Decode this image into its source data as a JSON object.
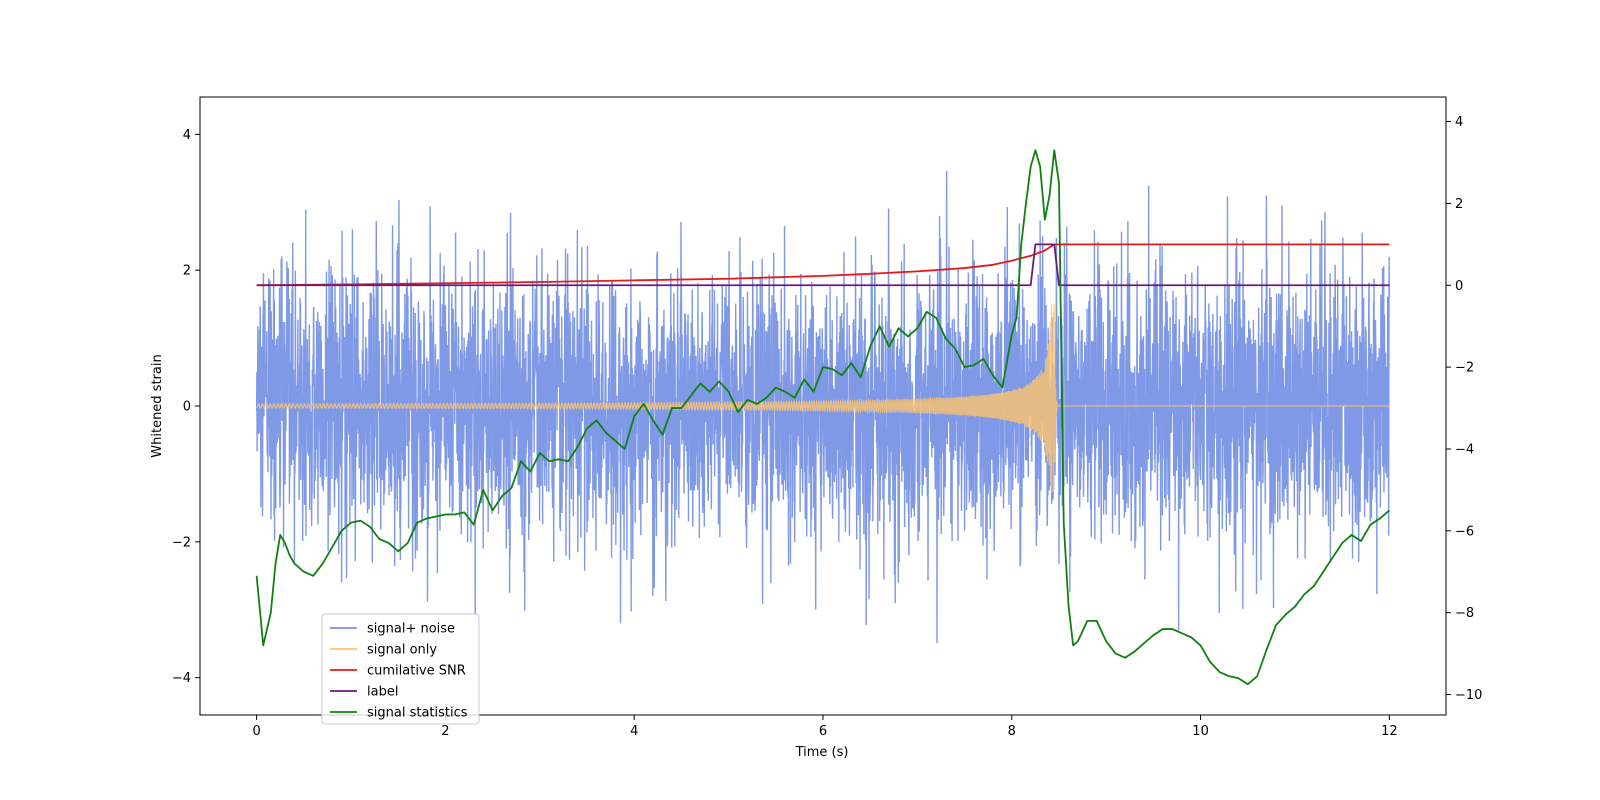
{
  "chart_data": {
    "type": "line",
    "xlabel": "Time (s)",
    "ylabel": "Whitened strain",
    "xlim": [
      -0.6,
      12.6
    ],
    "ylim_left": [
      -4.55,
      4.55
    ],
    "ylim_right": [
      -10.5,
      4.6
    ],
    "x_ticks": [
      0,
      2,
      4,
      6,
      8,
      10,
      12
    ],
    "y_ticks_left": [
      -4,
      -2,
      0,
      2,
      4
    ],
    "y_ticks_right": [
      -10,
      -8,
      -6,
      -4,
      -2,
      0,
      2,
      4
    ],
    "legend_position": "lower-left",
    "series": [
      {
        "name": "signal+ noise",
        "axis": "left",
        "color": "#7893e6",
        "description_range": {
          "x": [
            0,
            12
          ],
          "typical_band": [
            -1.6,
            1.6
          ],
          "peak_min": -4.1,
          "peak_max": 4.1
        },
        "seed": 12345
      },
      {
        "name": "signal only",
        "axis": "left",
        "color": "#ffc46e",
        "chirp": {
          "start": 0,
          "merge": 8.45,
          "end": 12,
          "amp_start": 0.03,
          "amp_peak": 1.5
        }
      },
      {
        "name": "cumilative SNR",
        "axis": "right",
        "color": "#e41a1c",
        "x": [
          0,
          1,
          2,
          3,
          4,
          5,
          6,
          6.5,
          7,
          7.5,
          7.8,
          8.0,
          8.2,
          8.35,
          8.45,
          8.5,
          12
        ],
        "values": [
          0,
          0.02,
          0.05,
          0.08,
          0.12,
          0.16,
          0.23,
          0.28,
          0.34,
          0.42,
          0.5,
          0.6,
          0.72,
          0.85,
          1.0,
          1.0,
          1.0
        ]
      },
      {
        "name": "label",
        "axis": "right",
        "color": "#6a1b7a",
        "x": [
          0,
          8.2,
          8.25,
          8.45,
          8.5,
          12
        ],
        "values": [
          0,
          0,
          1,
          1,
          0,
          0
        ]
      },
      {
        "name": "signal statistics",
        "axis": "right",
        "color": "#118011",
        "x": [
          0,
          0.07,
          0.15,
          0.2,
          0.25,
          0.3,
          0.35,
          0.4,
          0.5,
          0.6,
          0.7,
          0.8,
          0.9,
          1.0,
          1.1,
          1.2,
          1.3,
          1.4,
          1.5,
          1.6,
          1.7,
          1.8,
          1.9,
          2.0,
          2.1,
          2.2,
          2.3,
          2.4,
          2.5,
          2.6,
          2.7,
          2.8,
          2.9,
          3.0,
          3.1,
          3.2,
          3.3,
          3.4,
          3.5,
          3.6,
          3.7,
          3.8,
          3.9,
          4.0,
          4.1,
          4.2,
          4.3,
          4.4,
          4.5,
          4.6,
          4.7,
          4.8,
          4.9,
          5.0,
          5.1,
          5.2,
          5.3,
          5.4,
          5.5,
          5.6,
          5.7,
          5.8,
          5.9,
          6.0,
          6.1,
          6.2,
          6.3,
          6.4,
          6.5,
          6.6,
          6.7,
          6.8,
          6.9,
          7.0,
          7.1,
          7.2,
          7.3,
          7.4,
          7.5,
          7.6,
          7.7,
          7.8,
          7.9,
          8.0,
          8.05,
          8.1,
          8.15,
          8.2,
          8.25,
          8.3,
          8.35,
          8.4,
          8.45,
          8.5,
          8.55,
          8.6,
          8.65,
          8.7,
          8.8,
          8.9,
          9.0,
          9.1,
          9.2,
          9.3,
          9.4,
          9.5,
          9.6,
          9.7,
          9.8,
          9.9,
          10.0,
          10.1,
          10.2,
          10.3,
          10.4,
          10.5,
          10.6,
          10.7,
          10.8,
          10.9,
          11.0,
          11.1,
          11.2,
          11.3,
          11.4,
          11.5,
          11.6,
          11.7,
          11.8,
          11.9,
          12.0
        ],
        "values": [
          -7.1,
          -8.8,
          -8.0,
          -6.8,
          -6.1,
          -6.3,
          -6.6,
          -6.8,
          -7.0,
          -7.1,
          -6.8,
          -6.4,
          -6.0,
          -5.8,
          -5.75,
          -5.9,
          -6.2,
          -6.3,
          -6.5,
          -6.3,
          -5.8,
          -5.7,
          -5.65,
          -5.6,
          -5.6,
          -5.55,
          -5.85,
          -5.0,
          -5.5,
          -5.15,
          -4.95,
          -4.3,
          -4.55,
          -4.1,
          -4.3,
          -4.25,
          -4.3,
          -3.95,
          -3.5,
          -3.3,
          -3.6,
          -3.8,
          -4.0,
          -3.2,
          -2.9,
          -3.3,
          -3.65,
          -3.0,
          -3.0,
          -2.7,
          -2.4,
          -2.6,
          -2.35,
          -2.6,
          -3.1,
          -2.8,
          -2.9,
          -2.75,
          -2.5,
          -2.6,
          -2.75,
          -2.3,
          -2.6,
          -2.0,
          -2.05,
          -2.2,
          -1.9,
          -2.25,
          -1.5,
          -1.0,
          -1.5,
          -1.05,
          -1.25,
          -1.05,
          -0.65,
          -0.8,
          -1.3,
          -1.55,
          -2.0,
          -1.95,
          -1.8,
          -2.2,
          -2.5,
          -1.2,
          -0.8,
          1.0,
          2.0,
          2.9,
          3.3,
          2.9,
          1.6,
          2.2,
          3.3,
          2.5,
          -5.8,
          -7.8,
          -8.8,
          -8.7,
          -8.2,
          -8.2,
          -8.7,
          -9.0,
          -9.1,
          -8.95,
          -8.75,
          -8.55,
          -8.4,
          -8.4,
          -8.5,
          -8.6,
          -8.8,
          -9.2,
          -9.45,
          -9.55,
          -9.6,
          -9.75,
          -9.55,
          -8.9,
          -8.3,
          -8.05,
          -7.85,
          -7.55,
          -7.35,
          -7.0,
          -6.65,
          -6.3,
          -6.1,
          -6.25,
          -5.85,
          -5.7,
          -5.5
        ]
      }
    ]
  }
}
